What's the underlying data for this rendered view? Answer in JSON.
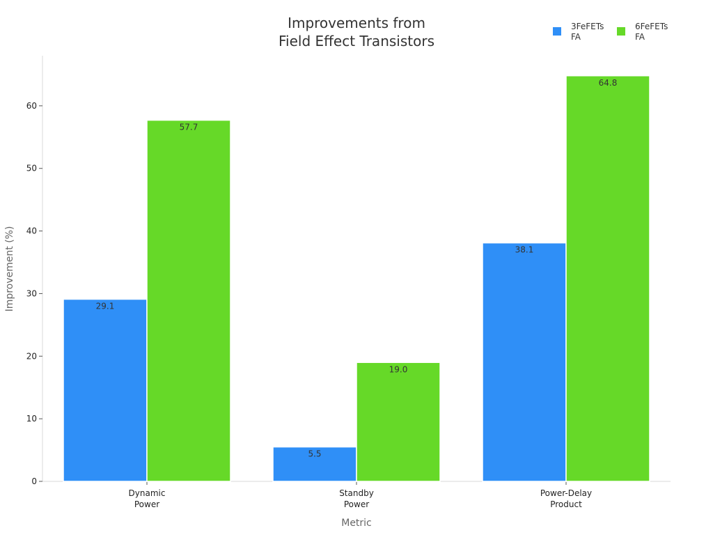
{
  "chart_data": {
    "type": "bar",
    "title": [
      "Improvements from",
      "Field Effect Transistors"
    ],
    "xlabel": "Metric",
    "ylabel": "Improvement (%)",
    "ylim": [
      0,
      68
    ],
    "yticks": [
      0,
      10,
      20,
      30,
      40,
      50,
      60
    ],
    "grid": false,
    "legend_position": "top-right",
    "categories": [
      [
        "Dynamic",
        "Power"
      ],
      [
        "Standby",
        "Power"
      ],
      [
        "Power-Delay",
        "Product"
      ]
    ],
    "series": [
      {
        "name": [
          "3FeFETs",
          "FA"
        ],
        "color": "#2f8ff7",
        "values": [
          29.1,
          5.5,
          38.1
        ],
        "labels": [
          "29.1",
          "5.5",
          "38.1"
        ]
      },
      {
        "name": [
          "6FeFETs",
          "FA"
        ],
        "color": "#66d928",
        "values": [
          57.7,
          19.0,
          64.8
        ],
        "labels": [
          "57.7",
          "19.0",
          "64.8"
        ]
      }
    ]
  }
}
